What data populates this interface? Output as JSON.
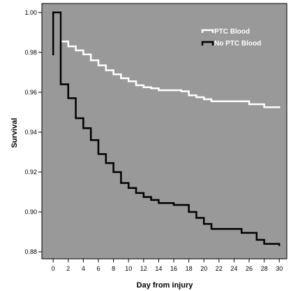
{
  "chart_data": {
    "type": "line",
    "title": "",
    "xlabel": "Day from injury",
    "ylabel": "Survival",
    "xlim": [
      -1.5,
      31
    ],
    "ylim": [
      0.8765,
      1.0045
    ],
    "xticks": [
      0,
      2,
      4,
      6,
      8,
      10,
      12,
      14,
      16,
      18,
      20,
      22,
      24,
      26,
      28,
      30
    ],
    "yticks": [
      0.88,
      0.9,
      0.92,
      0.94,
      0.96,
      0.98,
      1.0
    ],
    "ytick_labels": [
      "0.88",
      "0.90",
      "0.92",
      "0.94",
      "0.96",
      "0.98",
      "1.00"
    ],
    "legend_position": "top-right",
    "background": "#999999",
    "series": [
      {
        "name": "PTC Blood",
        "color": "#ffffff",
        "line": "step",
        "points": [
          [
            0,
            0.9785
          ],
          [
            0,
            1.0
          ],
          [
            1,
            1.0
          ],
          [
            1,
            0.9855
          ],
          [
            2,
            0.983
          ],
          [
            3,
            0.981
          ],
          [
            4,
            0.979
          ],
          [
            5,
            0.976
          ],
          [
            6,
            0.9735
          ],
          [
            7,
            0.971
          ],
          [
            8,
            0.969
          ],
          [
            9,
            0.967
          ],
          [
            10,
            0.9655
          ],
          [
            11,
            0.9635
          ],
          [
            12,
            0.9625
          ],
          [
            13,
            0.962
          ],
          [
            14,
            0.961
          ],
          [
            17,
            0.9605
          ],
          [
            18,
            0.9585
          ],
          [
            19,
            0.9575
          ],
          [
            20,
            0.9565
          ],
          [
            21,
            0.9555
          ],
          [
            26,
            0.954
          ],
          [
            28,
            0.9525
          ],
          [
            30,
            0.952
          ]
        ]
      },
      {
        "name": "No PTC Blood",
        "color": "#000000",
        "line": "step",
        "points": [
          [
            0,
            0.9785
          ],
          [
            0,
            1.0
          ],
          [
            1,
            1.0
          ],
          [
            1,
            0.964
          ],
          [
            2,
            0.957
          ],
          [
            3,
            0.947
          ],
          [
            4,
            0.942
          ],
          [
            5,
            0.936
          ],
          [
            6,
            0.929
          ],
          [
            7,
            0.9245
          ],
          [
            8,
            0.92
          ],
          [
            9,
            0.9145
          ],
          [
            10,
            0.912
          ],
          [
            11,
            0.9095
          ],
          [
            12,
            0.9075
          ],
          [
            13,
            0.906
          ],
          [
            14,
            0.9045
          ],
          [
            16,
            0.9035
          ],
          [
            18,
            0.9
          ],
          [
            19,
            0.897
          ],
          [
            20,
            0.894
          ],
          [
            21,
            0.8915
          ],
          [
            25,
            0.8895
          ],
          [
            27,
            0.886
          ],
          [
            28,
            0.884
          ],
          [
            30,
            0.883
          ]
        ]
      }
    ]
  }
}
